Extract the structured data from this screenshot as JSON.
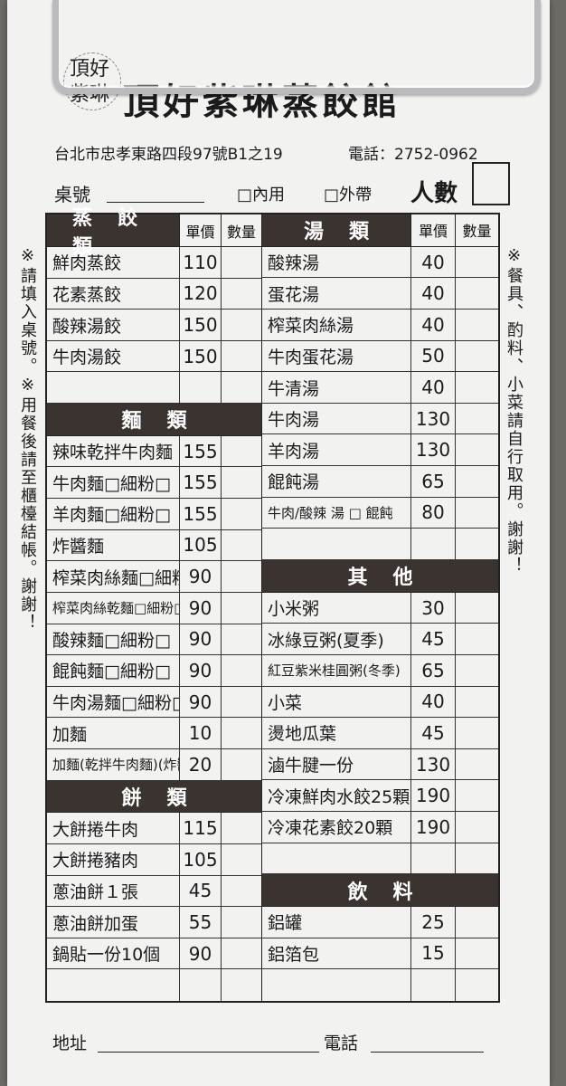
{
  "header": {
    "seal_text": "頂好 紫琳",
    "title": "頂好紫琳蒸餃館",
    "address": "台北市忠孝東路四段97號B1之19",
    "phone": "電話：2752-0962"
  },
  "order": {
    "table_label": "桌號",
    "dine_in": "□內用",
    "take_out": "□外帶",
    "people_label": "人數"
  },
  "columns": {
    "price": "單價",
    "qty": "數量"
  },
  "left_sections": [
    {
      "title": "蒸餃類",
      "show_cols": true,
      "items": [
        {
          "name": "鮮肉蒸餃",
          "price": "110"
        },
        {
          "name": "花素蒸餃",
          "price": "120"
        },
        {
          "name": "酸辣湯餃",
          "price": "150"
        },
        {
          "name": "牛肉湯餃",
          "price": "150"
        },
        {
          "name": "",
          "price": ""
        }
      ]
    },
    {
      "title": "麵類",
      "show_cols": false,
      "items": [
        {
          "name": "辣味乾拌牛肉麵",
          "price": "155"
        },
        {
          "name": "牛肉麵□細粉□",
          "price": "155"
        },
        {
          "name": "羊肉麵□細粉□",
          "price": "155"
        },
        {
          "name": "炸醬麵",
          "price": "105"
        },
        {
          "name": "榨菜肉絲麵□細粉□",
          "price": "90"
        },
        {
          "name": "榨菜肉絲乾麵□細粉□",
          "price": "90"
        },
        {
          "name": "酸辣麵□細粉□",
          "price": "90"
        },
        {
          "name": "餛飩麵□細粉□",
          "price": "90"
        },
        {
          "name": "牛肉湯麵□細粉□",
          "price": "90"
        },
        {
          "name": "加麵",
          "price": "10"
        },
        {
          "name": "加麵(乾拌牛肉麵)(炸醬麵)",
          "price": "20"
        }
      ]
    },
    {
      "title": "餅類",
      "show_cols": false,
      "items": [
        {
          "name": "大餅捲牛肉",
          "price": "115"
        },
        {
          "name": "大餅捲豬肉",
          "price": "105"
        },
        {
          "name": "蔥油餅１張",
          "price": "45"
        },
        {
          "name": "蔥油餅加蛋",
          "price": "55"
        },
        {
          "name": "鍋貼一份10個",
          "price": "90"
        },
        {
          "name": "",
          "price": ""
        }
      ]
    }
  ],
  "right_sections": [
    {
      "title": "湯類",
      "show_cols": true,
      "items": [
        {
          "name": "酸辣湯",
          "price": "40"
        },
        {
          "name": "蛋花湯",
          "price": "40"
        },
        {
          "name": "榨菜肉絲湯",
          "price": "40"
        },
        {
          "name": "牛肉蛋花湯",
          "price": "50"
        },
        {
          "name": "牛清湯",
          "price": "40"
        },
        {
          "name": "牛肉湯",
          "price": "130"
        },
        {
          "name": "羊肉湯",
          "price": "130"
        },
        {
          "name": "餛飩湯",
          "price": "65"
        },
        {
          "name": "牛肉/酸辣 湯 □ 餛飩",
          "price": "80"
        },
        {
          "name": "",
          "price": ""
        }
      ]
    },
    {
      "title": "其他",
      "show_cols": false,
      "items": [
        {
          "name": "小米粥",
          "price": "30"
        },
        {
          "name": "冰綠豆粥(夏季)",
          "price": "45"
        },
        {
          "name": "紅豆紫米桂圓粥(冬季)",
          "price": "65"
        },
        {
          "name": "小菜",
          "price": "40"
        },
        {
          "name": "燙地瓜葉",
          "price": "45"
        },
        {
          "name": "滷牛腱一份",
          "price": "130"
        },
        {
          "name": "冷凍鮮肉水餃25顆",
          "price": "190"
        },
        {
          "name": "冷凍花素餃20顆",
          "price": "190"
        },
        {
          "name": "",
          "price": ""
        }
      ]
    },
    {
      "title": "飲料",
      "show_cols": false,
      "items": [
        {
          "name": "鋁罐",
          "price": "25"
        },
        {
          "name": "鋁箔包",
          "price": "15"
        },
        {
          "name": "",
          "price": ""
        }
      ]
    }
  ],
  "notes": {
    "left": "※請填入桌號。※用餐後請至櫃檯結帳。謝謝！",
    "right": "※餐具、酌料、小菜請自行取用。謝謝！"
  },
  "footer": {
    "address_label": "地址",
    "phone_label": "電話"
  }
}
